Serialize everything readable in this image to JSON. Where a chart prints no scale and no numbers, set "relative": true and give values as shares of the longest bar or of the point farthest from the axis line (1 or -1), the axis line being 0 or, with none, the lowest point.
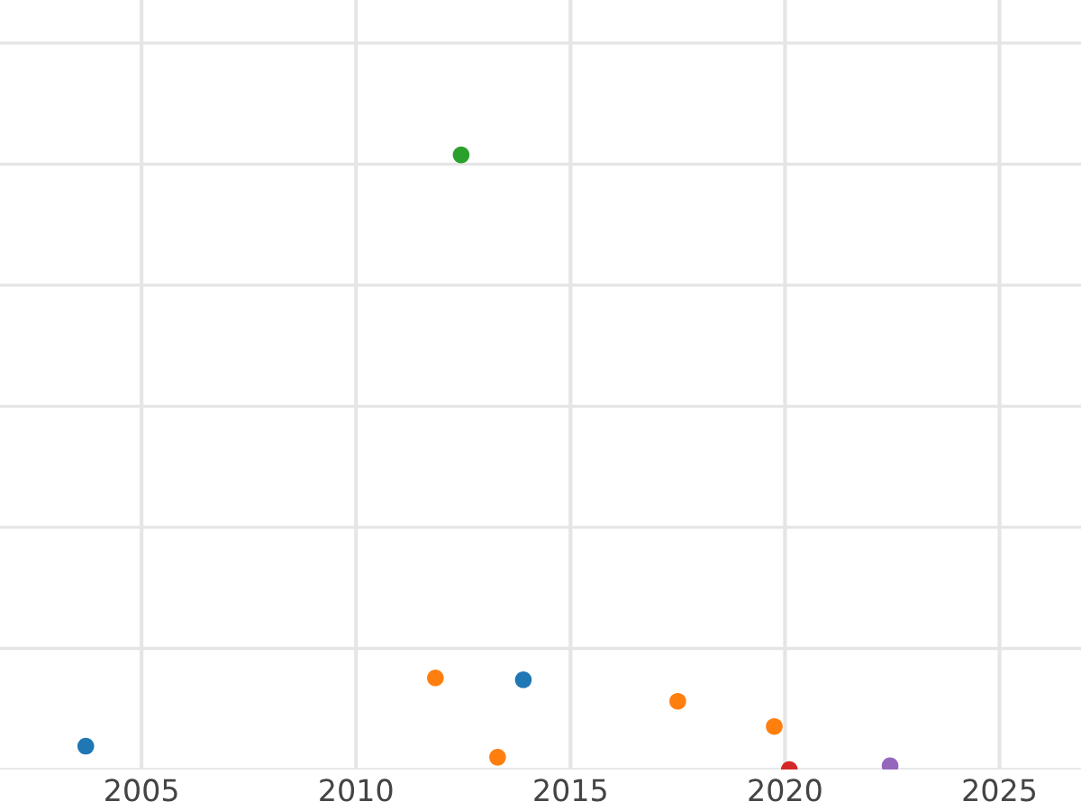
{
  "chart_data": {
    "type": "scatter",
    "relative": true,
    "xlim": [
      2001.7,
      2026.9
    ],
    "xticks": [
      2005,
      2010,
      2015,
      2020,
      2025
    ],
    "grid": true,
    "tick_labels": "x",
    "marker": "circle",
    "series": [
      {
        "color": "#1f77b4",
        "x": [
          2003.7,
          2013.9
        ],
        "values": [
          0.038,
          0.146
        ]
      },
      {
        "color": "#ff7f0e",
        "x": [
          2011.85,
          2013.3,
          2017.5,
          2019.75
        ],
        "values": [
          0.149,
          0.02,
          0.111,
          0.07
        ]
      },
      {
        "color": "#2ca02c",
        "x": [
          2012.45
        ],
        "values": [
          1
        ]
      },
      {
        "color": "#d62728",
        "x": [
          2020.1
        ],
        "values": [
          0
        ]
      },
      {
        "color": "#9467bd",
        "x": [
          2022.45
        ],
        "values": [
          0.006
        ]
      }
    ]
  }
}
